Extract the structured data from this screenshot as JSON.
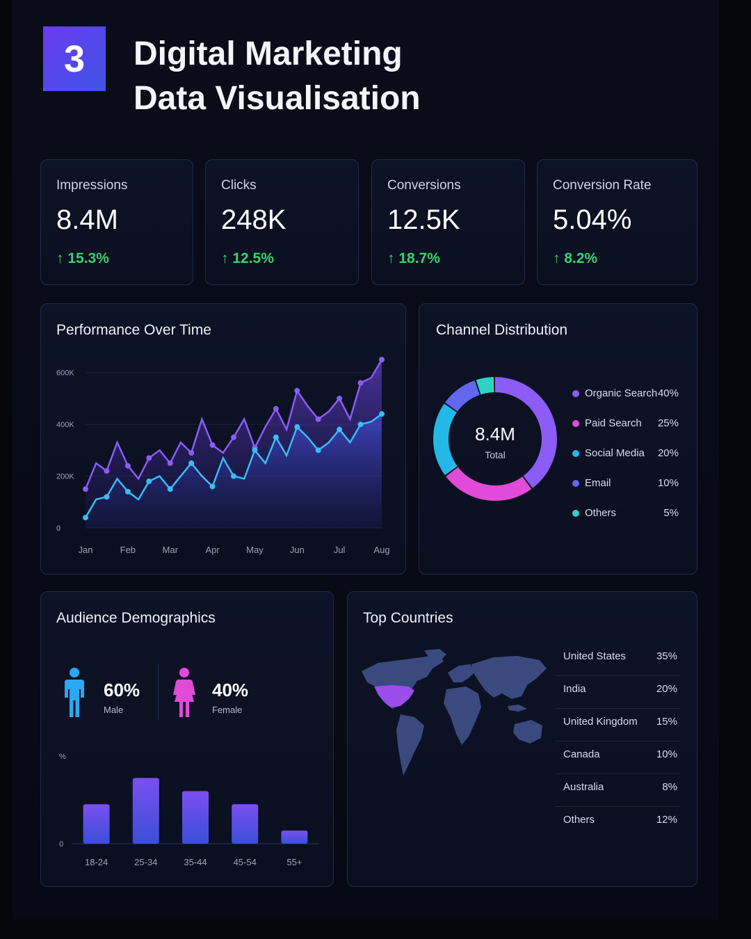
{
  "header": {
    "badge_number": "3",
    "title_line1": "Digital Marketing",
    "title_line2": "Data Visualisation"
  },
  "kpis": [
    {
      "label": "Impressions",
      "value": "8.4M",
      "change": "15.3%"
    },
    {
      "label": "Clicks",
      "value": "248K",
      "change": "12.5%"
    },
    {
      "label": "Conversions",
      "value": "12.5K",
      "change": "18.7%"
    },
    {
      "label": "Conversion Rate",
      "value": "5.04%",
      "change": "8.2%"
    }
  ],
  "colors": {
    "accent_purple": "#8b5cf6",
    "accent_blue": "#38bdf8",
    "positive": "#39d36c",
    "pink": "#e24ad8",
    "teal": "#2dd4bf"
  },
  "chart_data": [
    {
      "type": "line",
      "title": "Performance Over Time",
      "x_ticks": [
        "Jan",
        "Feb",
        "Mar",
        "Apr",
        "May",
        "Jun",
        "Jul",
        "Aug"
      ],
      "y_ticks": [
        "0",
        "200K",
        "400K",
        "600K"
      ],
      "ylim": [
        0,
        650000
      ],
      "x": [
        0,
        0.25,
        0.5,
        0.75,
        1,
        1.25,
        1.5,
        1.75,
        2,
        2.25,
        2.5,
        2.75,
        3,
        3.25,
        3.5,
        3.75,
        4,
        4.25,
        4.5,
        4.75,
        5,
        5.25,
        5.5,
        5.75,
        6,
        6.25,
        6.5,
        6.75,
        7
      ],
      "series": [
        {
          "color": "#8b5cf6",
          "values": [
            150000,
            250000,
            220000,
            330000,
            240000,
            190000,
            270000,
            300000,
            250000,
            330000,
            290000,
            420000,
            320000,
            290000,
            350000,
            420000,
            310000,
            390000,
            460000,
            380000,
            530000,
            470000,
            420000,
            450000,
            500000,
            420000,
            560000,
            580000,
            650000
          ]
        },
        {
          "color": "#38bdf8",
          "values": [
            40000,
            110000,
            120000,
            190000,
            140000,
            110000,
            180000,
            200000,
            150000,
            200000,
            250000,
            200000,
            160000,
            270000,
            200000,
            190000,
            300000,
            250000,
            350000,
            280000,
            390000,
            350000,
            300000,
            330000,
            380000,
            330000,
            400000,
            410000,
            440000
          ]
        }
      ]
    },
    {
      "type": "pie",
      "title": "Channel Distribution",
      "center_value": "8.4M",
      "center_label": "Total",
      "slices": [
        {
          "label": "Organic Search",
          "value": 40,
          "display": "40%",
          "color": "#8b5cf6"
        },
        {
          "label": "Paid Search",
          "value": 25,
          "display": "25%",
          "color": "#e24ad8"
        },
        {
          "label": "Social Media",
          "value": 20,
          "display": "20%",
          "color": "#22b8e8"
        },
        {
          "label": "Email",
          "value": 10,
          "display": "10%",
          "color": "#6366f1"
        },
        {
          "label": "Others",
          "value": 5,
          "display": "5%",
          "color": "#2dd4bf"
        }
      ]
    },
    {
      "type": "bar",
      "title": "Audience Demographics",
      "y_ticks": [
        "%",
        "0"
      ],
      "categories": [
        "18-24",
        "25-34",
        "35-44",
        "45-54",
        "55+"
      ],
      "values": [
        18,
        30,
        24,
        18,
        6
      ],
      "ylim": [
        0,
        40
      ]
    },
    {
      "type": "table",
      "title": "Top Countries",
      "rows": [
        {
          "country": "United States",
          "share": "35%"
        },
        {
          "country": "India",
          "share": "20%"
        },
        {
          "country": "United Kingdom",
          "share": "15%"
        },
        {
          "country": "Canada",
          "share": "10%"
        },
        {
          "country": "Australia",
          "share": "8%"
        },
        {
          "country": "Others",
          "share": "12%"
        }
      ]
    }
  ],
  "demographics": {
    "male": {
      "value": "60%",
      "label": "Male"
    },
    "female": {
      "value": "40%",
      "label": "Female"
    }
  }
}
